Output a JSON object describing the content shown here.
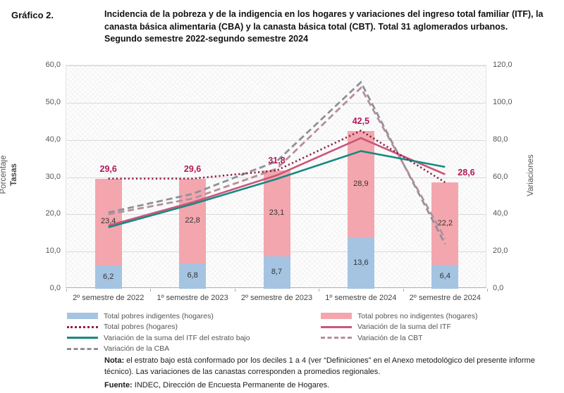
{
  "header": {
    "figure_label": "Gráfico 2.",
    "title_lines": [
      "Incidencia de la pobreza y de la indigencia en los hogares y variaciones del ingreso total familiar (ITF), la",
      "canasta básica alimentaria (CBA) y la canasta básica total (CBT). Total 31 aglomerados urbanos.",
      "Segundo semestre 2022-segundo semestre 2024"
    ]
  },
  "chart_data": {
    "type": "bar",
    "subtype": "stacked-bars-with-lines",
    "categories": [
      "2º semestre de 2022",
      "1º semestre de 2023",
      "2º semestre de 2023",
      "1º semestre de 2024",
      "2º semestre de 2024"
    ],
    "left_axis": {
      "title_line1": "Porcentaje",
      "title_line2": "Tasas",
      "min": 0,
      "max": 60,
      "ticks": [
        "0,0",
        "10,0",
        "20,0",
        "30,0",
        "40,0",
        "50,0",
        "60,0"
      ]
    },
    "right_axis": {
      "title": "Variaciones",
      "min": 0,
      "max": 120,
      "ticks": [
        "0,0",
        "20,0",
        "40,0",
        "60,0",
        "80,0",
        "100,0",
        "120,0"
      ]
    },
    "bars": {
      "indigentes": {
        "name": "Total pobres indigentes (hogares)",
        "color": "#a4c4e2",
        "values": [
          6.2,
          6.8,
          8.7,
          13.6,
          6.4
        ],
        "value_labels": [
          "6,2",
          "6,8",
          "8,7",
          "13,6",
          "6,4"
        ]
      },
      "no_indigentes": {
        "name": "Total pobres no indigentes (hogares)",
        "color": "#f3a6ad",
        "values": [
          23.4,
          22.8,
          23.1,
          28.9,
          22.2
        ],
        "value_labels": [
          "23,4",
          "22,8",
          "23,1",
          "28,9",
          "22,2"
        ]
      },
      "totals": {
        "color": "#b01957",
        "values": [
          29.6,
          29.6,
          31.8,
          42.5,
          28.6
        ],
        "labels": [
          "29,6",
          "29,6",
          "31,8",
          "42,5",
          "28,6"
        ]
      }
    },
    "lines": [
      {
        "name": "Variación de la CBA",
        "axis": "right",
        "style": "dashed",
        "color": "#90909c",
        "values": [
          41,
          51,
          68.5,
          111,
          24
        ]
      },
      {
        "name": "Variación de la CBT",
        "axis": "right",
        "style": "dashed",
        "color": "#b49099",
        "values": [
          40,
          48.5,
          64.5,
          108,
          27
        ]
      },
      {
        "name": "Variación de la suma del ITF",
        "axis": "right",
        "style": "solid",
        "color": "#cc5579",
        "values": [
          34,
          46.5,
          61,
          81,
          61.5
        ]
      },
      {
        "name": "Variación de la suma del ITF del estrato bajo",
        "axis": "right",
        "style": "solid",
        "color": "#178a80",
        "values": [
          33,
          45.5,
          59,
          74,
          65.5
        ]
      },
      {
        "name": "Total pobres (hogares)",
        "axis": "left",
        "style": "dotted",
        "color": "#8e2040",
        "values": [
          29.6,
          29.6,
          31.8,
          42.5,
          28.6
        ]
      }
    ],
    "grid": true,
    "legend_position": "bottom"
  },
  "legend": {
    "columns": [
      [
        {
          "label": "Total pobres indigentes (hogares)",
          "swatch": "bar",
          "color": "#a4c4e2"
        },
        {
          "label": "Total pobres (hogares)",
          "swatch": "dotted",
          "color": "#8e2040"
        },
        {
          "label": "Variación de la suma del ITF del estrato bajo",
          "swatch": "solid",
          "color": "#178a80"
        },
        {
          "label": "Variación de la CBA",
          "swatch": "dashed",
          "color": "#90909c"
        }
      ],
      [
        {
          "label": "Total pobres no indigentes (hogares)",
          "swatch": "bar",
          "color": "#f3a6ad"
        },
        {
          "label": "Variación de la suma del ITF",
          "swatch": "solid",
          "color": "#cc5579"
        },
        {
          "label": "Variación de la CBT",
          "swatch": "dashed",
          "color": "#b49099"
        }
      ]
    ]
  },
  "notes": {
    "nota_label": "Nota:",
    "nota_text": " el estrato bajo está conformado por los deciles 1 a 4 (ver “Definiciones” en el Anexo metodológico del presente informe técnico). Las variaciones de las canastas corresponden a promedios regionales.",
    "fuente_label": "Fuente:",
    "fuente_text": " INDEC, Dirección de Encuesta Permanente de Hogares."
  }
}
